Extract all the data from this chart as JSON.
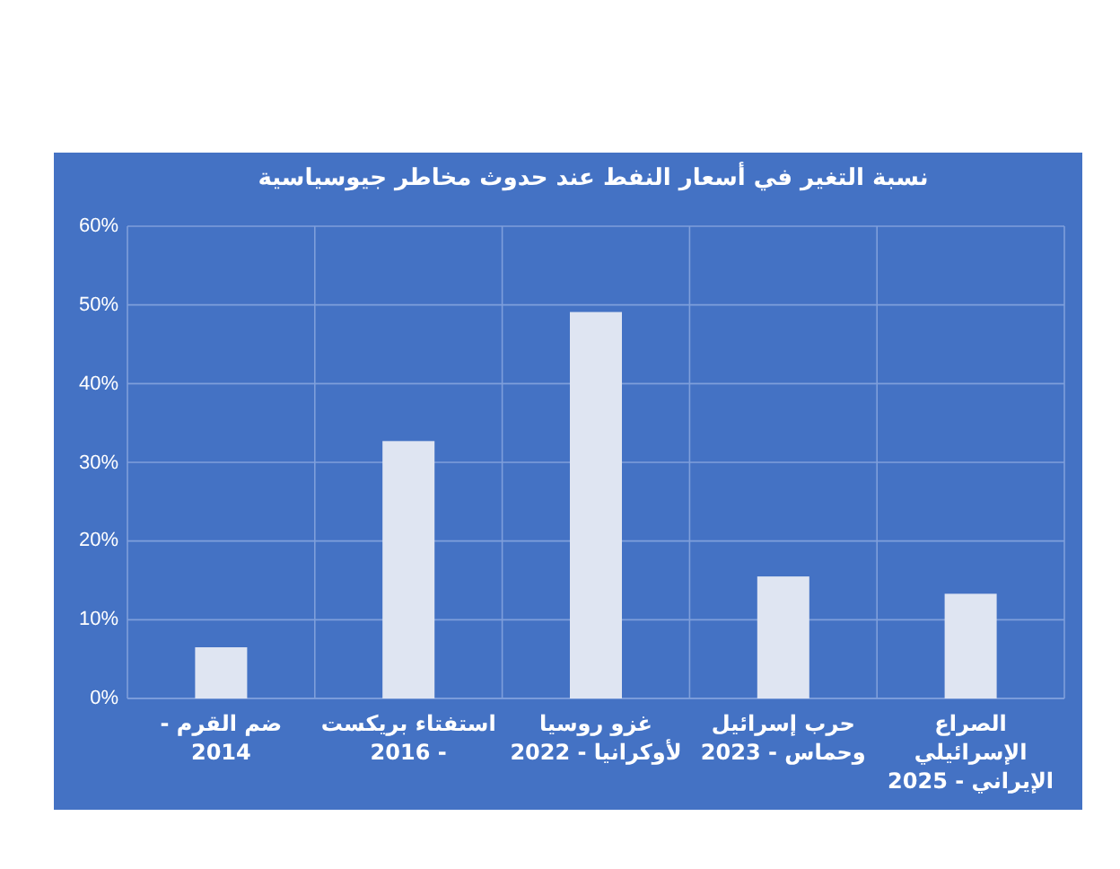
{
  "chart_data": {
    "type": "bar",
    "title": "نسبة التغير في أسعار النفط عند حدوث مخاطر جيوسياسية",
    "categories": [
      "ضم القرم - 2014",
      "استفتاء بريكست - 2016",
      "غزو روسيا لأوكرانيا - 2022",
      "حرب إسرائيل وحماس - 2023",
      "الصراع الإسرائيلي الإيراني - 2025"
    ],
    "values": [
      6.5,
      32.7,
      49.1,
      15.5,
      13.3
    ],
    "color": "#dfe5f2",
    "ylim": [
      0,
      60
    ],
    "yticks": [
      {
        "value": 0,
        "label": "0%"
      },
      {
        "value": 10,
        "label": "10%"
      },
      {
        "value": 20,
        "label": "20%"
      },
      {
        "value": 30,
        "label": "30%"
      },
      {
        "value": 40,
        "label": "40%"
      },
      {
        "value": 50,
        "label": "50%"
      },
      {
        "value": 60,
        "label": "60%"
      }
    ],
    "grid": true
  }
}
